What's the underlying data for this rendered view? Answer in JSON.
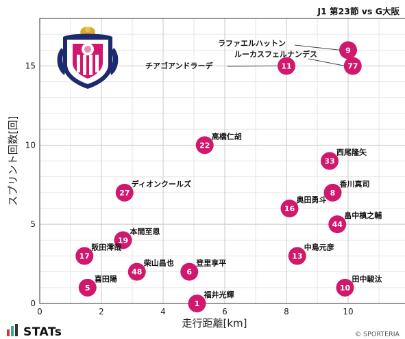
{
  "header": {
    "title": "J1 第23節 vs G大阪"
  },
  "footer": {
    "brand": "STATs",
    "credit": "© SPORTERIA"
  },
  "colors": {
    "marker": "#d0186c",
    "grid_major": "#c8c8c8",
    "grid_minor": "#e6e6e6",
    "axis": "#333333"
  },
  "chart_data": {
    "type": "scatter",
    "xlabel": "走行距離[km]",
    "ylabel": "スプリント回数[回]",
    "xlim": [
      0,
      12
    ],
    "ylim": [
      0,
      18
    ],
    "x_ticks": [
      0,
      2,
      4,
      6,
      8,
      10,
      12
    ],
    "y_ticks": [
      0,
      5,
      10,
      15
    ],
    "grid": true,
    "points": [
      {
        "number": "9",
        "name": "ラファエルハットン",
        "x": 10.0,
        "y": 16.0
      },
      {
        "number": "77",
        "name": "ルーカスフェルナンデス",
        "x": 10.15,
        "y": 15.0
      },
      {
        "number": "11",
        "name": "チアゴアンドラーデ",
        "x": 8.0,
        "y": 15.0
      },
      {
        "number": "22",
        "name": "高橋仁胡",
        "x": 5.35,
        "y": 10.0
      },
      {
        "number": "33",
        "name": "西尾隆矢",
        "x": 9.4,
        "y": 9.0
      },
      {
        "number": "27",
        "name": "ディオンクールズ",
        "x": 2.75,
        "y": 7.0
      },
      {
        "number": "8",
        "name": "香川真司",
        "x": 9.5,
        "y": 7.0
      },
      {
        "number": "16",
        "name": "奥田勇斗",
        "x": 8.1,
        "y": 6.0
      },
      {
        "number": "44",
        "name": "畠中槙之輔",
        "x": 9.65,
        "y": 5.0
      },
      {
        "number": "19",
        "name": "本間至恩",
        "x": 2.7,
        "y": 4.0
      },
      {
        "number": "17",
        "name": "阪田澪哉",
        "x": 1.45,
        "y": 3.0
      },
      {
        "number": "13",
        "name": "中島元彦",
        "x": 8.35,
        "y": 3.0
      },
      {
        "number": "48",
        "name": "柴山昌也",
        "x": 3.15,
        "y": 2.0
      },
      {
        "number": "6",
        "name": "登里享平",
        "x": 4.85,
        "y": 2.0
      },
      {
        "number": "5",
        "name": "喜田陽",
        "x": 1.55,
        "y": 1.0
      },
      {
        "number": "10",
        "name": "田中駿汰",
        "x": 9.9,
        "y": 1.0
      },
      {
        "number": "1",
        "name": "福井光輝",
        "x": 5.1,
        "y": 0.0
      }
    ]
  }
}
